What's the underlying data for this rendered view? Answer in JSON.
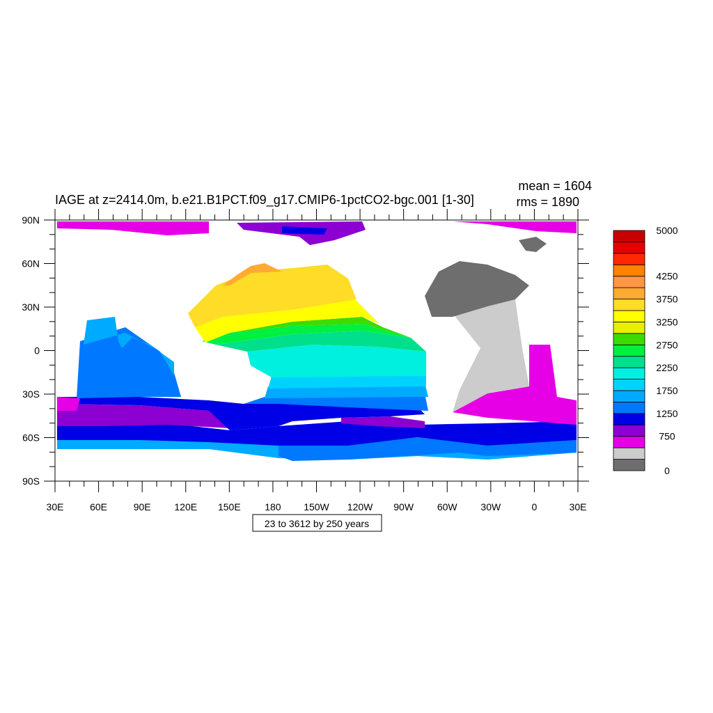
{
  "title": "IAGE at z=2414.0m, b.e21.B1PCT.f09_g17.CMIP6-1pctCO2-bgc.001 [1-30]",
  "stats": {
    "mean": "mean = 1604",
    "rms": "rms = 1890"
  },
  "contour_info": "23 to 3612 by 250 years",
  "lat_labels": [
    "90N",
    "60N",
    "30N",
    "0",
    "30S",
    "60S",
    "90S"
  ],
  "lon_labels": [
    "30E",
    "60E",
    "90E",
    "120E",
    "150E",
    "180",
    "150W",
    "120W",
    "90W",
    "60W",
    "30W",
    "0",
    "30E"
  ],
  "colorbar": {
    "colors": [
      "#6e6e6e",
      "#cccccc",
      "#e600e6",
      "#8c00d2",
      "#0000e6",
      "#0078ff",
      "#00aaff",
      "#00d2ff",
      "#00f0e0",
      "#00e08c",
      "#00f040",
      "#3cdc00",
      "#e6f000",
      "#ffff00",
      "#ffdc28",
      "#ffaa32",
      "#ff9646",
      "#ff8200",
      "#ff2800",
      "#e60000",
      "#c80000"
    ],
    "labels": [
      {
        "level": 0,
        "text": "0"
      },
      {
        "level": 750,
        "text": "750"
      },
      {
        "level": 1250,
        "text": "1250"
      },
      {
        "level": 1750,
        "text": "1750"
      },
      {
        "level": 2250,
        "text": "2250"
      },
      {
        "level": 2750,
        "text": "2750"
      },
      {
        "level": 3250,
        "text": "3250"
      },
      {
        "level": 3750,
        "text": "3750"
      },
      {
        "level": 4250,
        "text": "4250"
      },
      {
        "level": 5000,
        "text": "5000"
      }
    ],
    "levels": [
      0,
      250,
      500,
      750,
      1000,
      1250,
      1500,
      1750,
      2000,
      2250,
      2500,
      2750,
      3000,
      3250,
      3500,
      3750,
      4000,
      4250,
      4500,
      4750,
      5000
    ]
  },
  "map_colors": {
    "land": "#ffffff",
    "grey_dark": "#6e6e6e",
    "grey_light": "#cccccc",
    "magenta": "#e600e6",
    "purple": "#8c00d2",
    "blue": "#0000e6",
    "mid_blue": "#0078ff",
    "sky": "#00aaff",
    "light_sky": "#00d2ff",
    "cyan": "#00f0e0",
    "teal_green": "#00e08c",
    "green": "#00f040",
    "lime": "#3cdc00",
    "yellow": "#ffff00",
    "gold": "#ffdc28",
    "orange": "#ffaa32"
  }
}
